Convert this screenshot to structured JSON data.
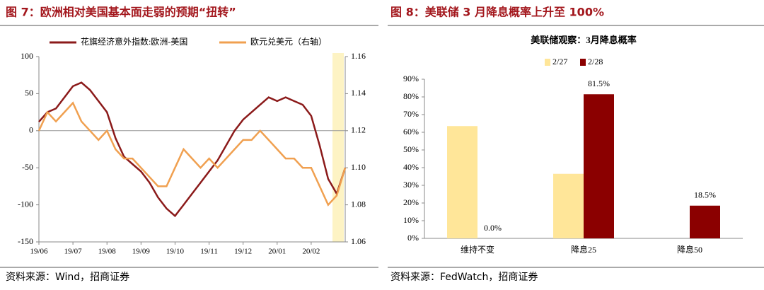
{
  "figures": [
    {
      "title": "图 7：欧洲相对美国基本面走弱的预期“扭转”",
      "source": "资料来源：Wind，招商证券"
    },
    {
      "title": "图 8：美联储 3 月降息概率上升至 100%",
      "source": "资料来源：FedWatch，招商证券"
    }
  ],
  "chart_data": [
    {
      "type": "line",
      "x": [
        "19/06",
        null,
        null,
        null,
        "19/07",
        null,
        null,
        null,
        "19/08",
        null,
        null,
        null,
        "19/09",
        null,
        null,
        null,
        "19/10",
        null,
        null,
        null,
        "19/11",
        null,
        null,
        null,
        "19/12",
        null,
        null,
        null,
        "20/01",
        null,
        null,
        null,
        "20/02",
        null,
        null,
        null,
        null
      ],
      "series": [
        {
          "name": "花旗经济意外指数:欧洲-美国",
          "color": "#8b1a1a",
          "values": [
            12,
            25,
            30,
            45,
            60,
            65,
            55,
            40,
            25,
            -10,
            -35,
            -45,
            -55,
            -70,
            -90,
            -105,
            -115,
            -100,
            -85,
            -70,
            -55,
            -40,
            -20,
            0,
            15,
            25,
            35,
            45,
            40,
            45,
            40,
            35,
            20,
            -20,
            -65,
            -85,
            -50
          ]
        },
        {
          "name": "欧元兑美元（右轴）",
          "color": "#f0a050",
          "axis": "y2",
          "values": [
            1.12,
            1.13,
            1.125,
            1.13,
            1.135,
            1.125,
            1.12,
            1.115,
            1.12,
            1.11,
            1.105,
            1.105,
            1.1,
            1.095,
            1.09,
            1.09,
            1.1,
            1.11,
            1.105,
            1.1,
            1.105,
            1.1,
            1.105,
            1.11,
            1.115,
            1.115,
            1.12,
            1.115,
            1.11,
            1.105,
            1.105,
            1.1,
            1.1,
            1.09,
            1.08,
            1.085,
            1.1
          ]
        }
      ],
      "ylim": [
        -150,
        100
      ],
      "yticks": [
        -150,
        -100,
        -50,
        0,
        50,
        100
      ],
      "y2lim": [
        1.06,
        1.16
      ],
      "y2ticks": [
        1.06,
        1.08,
        {
          "value": 1.1,
          "label": "1.10"
        },
        1.12,
        1.14,
        1.16
      ]
    },
    {
      "type": "bar",
      "title": "美联储观察：3月降息概率",
      "categories": [
        "维持不变",
        "降息25",
        "降息50"
      ],
      "series": [
        {
          "name": "2/27",
          "color": "#ffe699",
          "values": [
            63.5,
            36.5,
            0
          ]
        },
        {
          "name": "2/28",
          "color": "#8b0000",
          "values": [
            0,
            81.5,
            18.5
          ],
          "value_labels": [
            "0.0%",
            "81.5%",
            "18.5%"
          ]
        }
      ],
      "ylim": [
        0,
        90
      ],
      "yticks": [
        {
          "value": 0,
          "label": "0%"
        },
        {
          "value": 10,
          "label": "10%"
        },
        {
          "value": 20,
          "label": "20%"
        },
        {
          "value": 30,
          "label": "30%"
        },
        {
          "value": 40,
          "label": "40%"
        },
        {
          "value": 50,
          "label": "50%"
        },
        {
          "value": 60,
          "label": "60%"
        },
        {
          "value": 70,
          "label": "70%"
        },
        {
          "value": 80,
          "label": "80%"
        },
        {
          "value": 90,
          "label": "90%"
        }
      ]
    }
  ]
}
